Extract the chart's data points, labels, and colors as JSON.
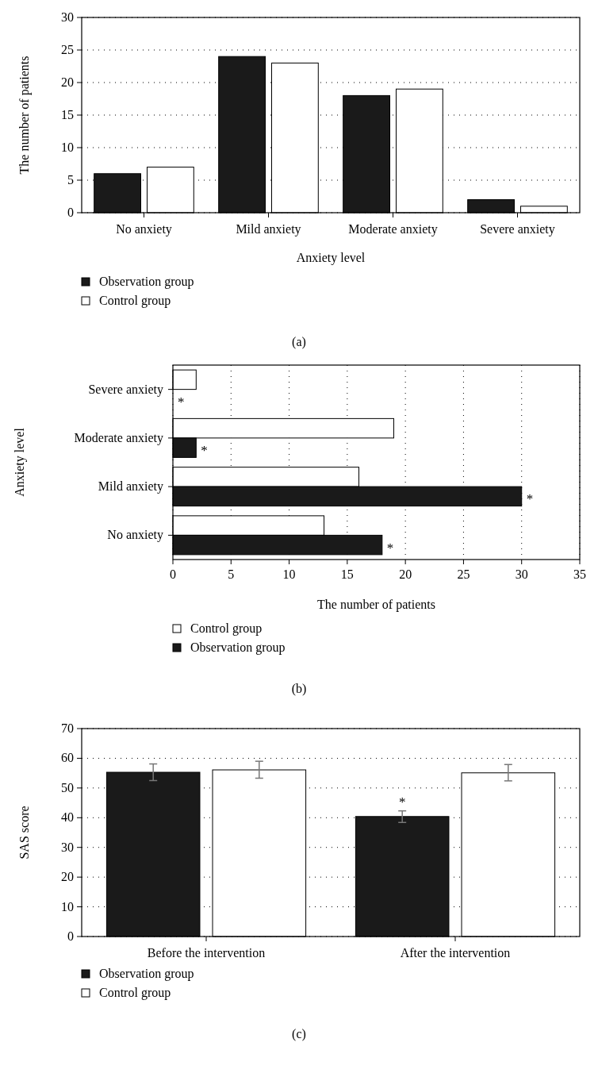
{
  "chart_data": [
    {
      "type": "bar",
      "xlabel": "Anxiety level",
      "ylabel": "The number of patients",
      "categories": [
        "No anxiety",
        "Mild anxiety",
        "Moderate anxiety",
        "Severe anxiety"
      ],
      "series": [
        {
          "name": "Observation group",
          "color": "#1a1a1a",
          "values": [
            6,
            24,
            18,
            2
          ]
        },
        {
          "name": "Control group",
          "color": "#ffffff",
          "values": [
            7,
            23,
            19,
            1
          ]
        }
      ],
      "ylim": [
        0,
        30
      ],
      "yticks": [
        0,
        5,
        10,
        15,
        20,
        25,
        30
      ],
      "grid": "y",
      "legend": "bottom",
      "annotations": [
        "(a)"
      ]
    },
    {
      "type": "bar",
      "orientation": "horizontal",
      "xlabel": "The number of patients",
      "ylabel": "Anxiety level",
      "categories": [
        "Severe anxiety",
        "Moderate anxiety",
        "Mild anxiety",
        "No anxiety"
      ],
      "series": [
        {
          "name": "Control group",
          "color": "#ffffff",
          "values": [
            2,
            19,
            16,
            13
          ]
        },
        {
          "name": "Observation group",
          "color": "#1a1a1a",
          "values": [
            0,
            2,
            30,
            18
          ]
        }
      ],
      "xlim": [
        0,
        35
      ],
      "xticks": [
        0,
        5,
        10,
        15,
        20,
        25,
        30,
        35
      ],
      "grid": "x",
      "legend": "bottom",
      "annotations": [
        {
          "text": "*",
          "x": 0,
          "y": "Severe anxiety"
        },
        {
          "text": "*",
          "x": 2,
          "y": "Moderate anxiety"
        },
        {
          "text": "*",
          "x": 30,
          "y": "Mild anxiety"
        },
        {
          "text": "*",
          "x": 18,
          "y": "No anxiety"
        },
        "(b)"
      ]
    },
    {
      "type": "bar",
      "ylabel": "SAS score",
      "categories": [
        "Before the intervention",
        "After the intervention"
      ],
      "series": [
        {
          "name": "Observation group",
          "color": "#1a1a1a",
          "values": [
            55.3,
            40.4
          ],
          "errors": [
            [
              52.5,
              58.1
            ],
            [
              38.4,
              42.3
            ]
          ]
        },
        {
          "name": "Control group",
          "color": "#ffffff",
          "values": [
            56.1,
            55.1
          ],
          "errors": [
            [
              53.3,
              59
            ],
            [
              52.4,
              57.9
            ]
          ]
        }
      ],
      "ylim": [
        0,
        70
      ],
      "yticks": [
        0,
        10,
        20,
        30,
        40,
        50,
        60,
        70
      ],
      "grid": "y",
      "legend": "bottom",
      "annotations": [
        "*",
        "(c)"
      ]
    }
  ]
}
